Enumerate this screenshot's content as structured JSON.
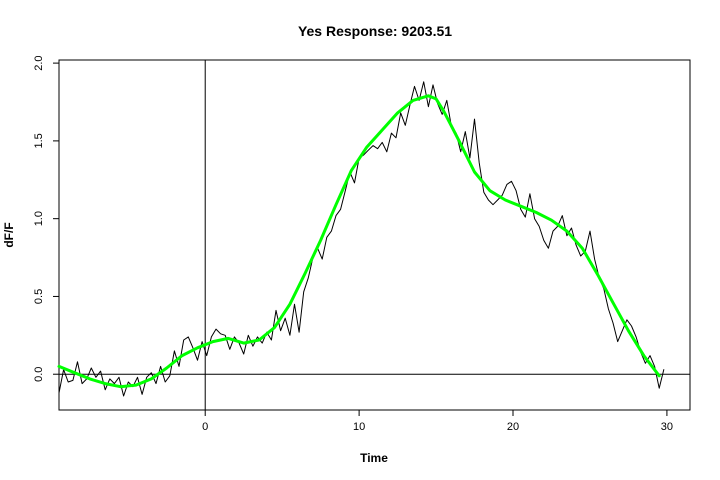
{
  "chart_data": {
    "type": "line",
    "title": "Yes Response: 9203.51",
    "xlabel": "Time",
    "ylabel": "dF/F",
    "xlim": [
      -9.5,
      31.5
    ],
    "ylim": [
      -0.23,
      2.02
    ],
    "x_ticks": [
      0,
      10,
      20,
      30
    ],
    "x_tick_labels": [
      "0",
      "10",
      "20",
      "30"
    ],
    "y_ticks": [
      0.0,
      0.5,
      1.0,
      1.5,
      2.0
    ],
    "y_tick_labels": [
      "0.0",
      "0.5",
      "1.0",
      "1.5",
      "2.0"
    ],
    "reference_lines": {
      "vertical_x": 0,
      "horizontal_y": 0
    },
    "grid": false,
    "series": [
      {
        "style": "raw-trace",
        "color": "#000000",
        "x": [
          -9.5,
          -9.2,
          -8.9,
          -8.6,
          -8.3,
          -8.0,
          -7.7,
          -7.4,
          -7.1,
          -6.8,
          -6.5,
          -6.2,
          -5.9,
          -5.6,
          -5.3,
          -5.0,
          -4.7,
          -4.4,
          -4.1,
          -3.8,
          -3.5,
          -3.2,
          -2.9,
          -2.6,
          -2.3,
          -2.0,
          -1.7,
          -1.4,
          -1.1,
          -0.8,
          -0.5,
          -0.2,
          0.1,
          0.4,
          0.7,
          1.0,
          1.3,
          1.6,
          1.9,
          2.2,
          2.5,
          2.8,
          3.1,
          3.4,
          3.7,
          4.0,
          4.3,
          4.6,
          4.9,
          5.2,
          5.5,
          5.8,
          6.1,
          6.4,
          6.7,
          7.0,
          7.3,
          7.6,
          7.9,
          8.2,
          8.5,
          8.8,
          9.1,
          9.4,
          9.7,
          10.0,
          10.3,
          10.6,
          10.9,
          11.2,
          11.5,
          11.8,
          12.1,
          12.4,
          12.7,
          13.0,
          13.3,
          13.6,
          13.9,
          14.2,
          14.5,
          14.8,
          15.1,
          15.4,
          15.7,
          16.0,
          16.3,
          16.6,
          16.9,
          17.2,
          17.5,
          17.8,
          18.1,
          18.4,
          18.7,
          19.0,
          19.3,
          19.6,
          19.9,
          20.2,
          20.5,
          20.8,
          21.1,
          21.4,
          21.7,
          22.0,
          22.3,
          22.6,
          22.9,
          23.2,
          23.5,
          23.8,
          24.1,
          24.4,
          24.7,
          25.0,
          25.3,
          25.6,
          25.9,
          26.2,
          26.5,
          26.8,
          27.1,
          27.4,
          27.7,
          28.0,
          28.3,
          28.6,
          28.9,
          29.2,
          29.5,
          29.8
        ],
        "y": [
          -0.12,
          0.03,
          -0.05,
          -0.04,
          0.08,
          -0.06,
          -0.03,
          0.04,
          -0.02,
          0.02,
          -0.1,
          -0.03,
          -0.06,
          -0.02,
          -0.14,
          -0.05,
          -0.08,
          -0.02,
          -0.13,
          -0.02,
          0.01,
          -0.06,
          0.05,
          -0.05,
          -0.01,
          0.15,
          0.05,
          0.22,
          0.24,
          0.17,
          0.09,
          0.21,
          0.12,
          0.24,
          0.29,
          0.26,
          0.25,
          0.16,
          0.24,
          0.2,
          0.13,
          0.25,
          0.18,
          0.24,
          0.2,
          0.27,
          0.22,
          0.41,
          0.28,
          0.36,
          0.25,
          0.45,
          0.27,
          0.53,
          0.62,
          0.75,
          0.81,
          0.74,
          0.88,
          0.92,
          1.02,
          1.06,
          1.18,
          1.3,
          1.23,
          1.39,
          1.41,
          1.44,
          1.47,
          1.45,
          1.49,
          1.43,
          1.55,
          1.52,
          1.68,
          1.6,
          1.73,
          1.85,
          1.76,
          1.88,
          1.72,
          1.86,
          1.74,
          1.67,
          1.76,
          1.59,
          1.55,
          1.43,
          1.56,
          1.39,
          1.64,
          1.36,
          1.17,
          1.12,
          1.09,
          1.12,
          1.15,
          1.22,
          1.24,
          1.18,
          1.06,
          1.01,
          1.16,
          1.0,
          0.95,
          0.86,
          0.81,
          0.92,
          0.95,
          1.02,
          0.89,
          0.94,
          0.83,
          0.76,
          0.79,
          0.92,
          0.74,
          0.62,
          0.55,
          0.42,
          0.33,
          0.21,
          0.28,
          0.35,
          0.31,
          0.24,
          0.14,
          0.07,
          0.12,
          0.05,
          -0.09,
          0.03
        ],
        "values_estimated_from_picture": true
      },
      {
        "style": "smoothed-fit",
        "color": "#00ff00",
        "x": [
          -9.5,
          -8.5,
          -7.5,
          -6.5,
          -5.5,
          -4.5,
          -3.5,
          -2.5,
          -1.5,
          -0.5,
          0.5,
          1.5,
          2.5,
          3.5,
          4.5,
          5.5,
          6.5,
          7.5,
          8.5,
          9.5,
          10.5,
          11.5,
          12.5,
          13.5,
          14.5,
          15.0,
          15.5,
          16.5,
          17.5,
          18.5,
          19.5,
          20.5,
          21.5,
          22.5,
          23.5,
          24.5,
          25.5,
          26.5,
          27.5,
          28.5,
          29.5
        ],
        "y": [
          0.05,
          0.01,
          -0.03,
          -0.06,
          -0.08,
          -0.07,
          -0.03,
          0.04,
          0.12,
          0.17,
          0.21,
          0.23,
          0.2,
          0.22,
          0.3,
          0.45,
          0.65,
          0.86,
          1.09,
          1.31,
          1.46,
          1.57,
          1.68,
          1.76,
          1.79,
          1.77,
          1.69,
          1.5,
          1.3,
          1.18,
          1.12,
          1.08,
          1.04,
          0.99,
          0.92,
          0.81,
          0.64,
          0.46,
          0.28,
          0.12,
          -0.01
        ]
      }
    ]
  }
}
